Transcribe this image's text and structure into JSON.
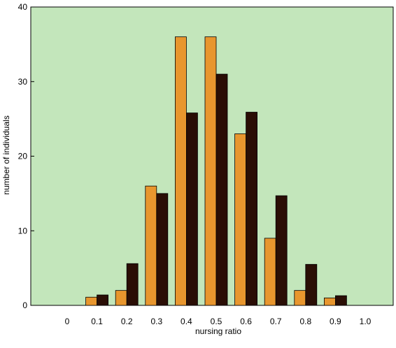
{
  "chart_data": {
    "type": "bar",
    "title": "",
    "xlabel": "nursing ratio",
    "ylabel": "number of individuals",
    "ylim": [
      0,
      40
    ],
    "y_ticks": [
      "0",
      "10",
      "20",
      "30",
      "40"
    ],
    "x_tick_labels": [
      "0",
      "0.1",
      "0.2",
      "0.3",
      "0.4",
      "0.5",
      "0.6",
      "0.7",
      "0.8",
      "0.9",
      "1.0"
    ],
    "categories": [
      "0.1",
      "0.2",
      "0.3",
      "0.4",
      "0.5",
      "0.6",
      "0.7",
      "0.8",
      "0.9"
    ],
    "series": [
      {
        "color": "#e8962e",
        "values": [
          1.1,
          2,
          16,
          36,
          36,
          23,
          9,
          2,
          1
        ]
      },
      {
        "color": "#2a0e05",
        "values": [
          1.4,
          5.6,
          15,
          25.8,
          31,
          25.9,
          14.7,
          5.5,
          1.3
        ]
      }
    ],
    "plot_background": "#c3e6bb",
    "grid": false,
    "legend": "none"
  }
}
